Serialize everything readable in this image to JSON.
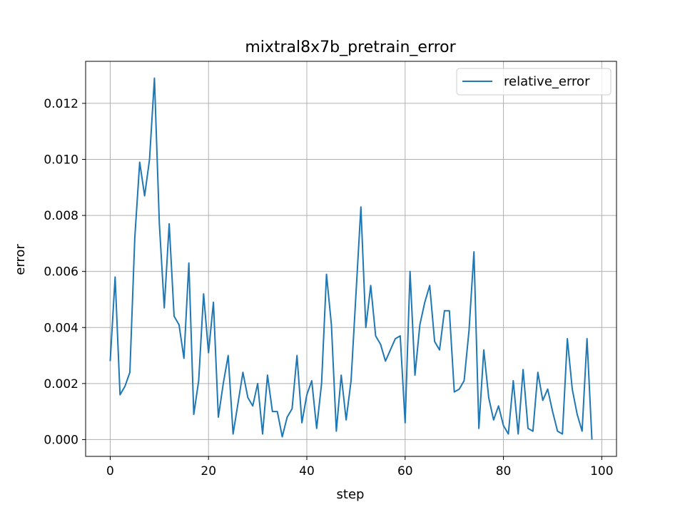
{
  "chart_data": {
    "type": "line",
    "title": "mixtral8x7b_pretrain_error",
    "xlabel": "step",
    "ylabel": "error",
    "xlim": [
      -5,
      103
    ],
    "ylim": [
      -0.0006,
      0.0135
    ],
    "xticks": [
      0,
      20,
      40,
      60,
      80,
      100
    ],
    "xtick_labels": [
      "0",
      "20",
      "40",
      "60",
      "80",
      "100"
    ],
    "yticks": [
      0.0,
      0.002,
      0.004,
      0.006,
      0.008,
      0.01,
      0.012
    ],
    "ytick_labels": [
      "0.000",
      "0.002",
      "0.004",
      "0.006",
      "0.008",
      "0.010",
      "0.012"
    ],
    "grid": true,
    "legend_position": "top-right",
    "series": [
      {
        "name": "relative_error",
        "color": "#1f77b4",
        "x": [
          0,
          1,
          2,
          3,
          4,
          5,
          6,
          7,
          8,
          9,
          10,
          11,
          12,
          13,
          14,
          15,
          16,
          17,
          18,
          19,
          20,
          21,
          22,
          23,
          24,
          25,
          26,
          27,
          28,
          29,
          30,
          31,
          32,
          33,
          34,
          35,
          36,
          37,
          38,
          39,
          40,
          41,
          42,
          43,
          44,
          45,
          46,
          47,
          48,
          49,
          50,
          51,
          52,
          53,
          54,
          55,
          56,
          57,
          58,
          59,
          60,
          61,
          62,
          63,
          64,
          65,
          66,
          67,
          68,
          69,
          70,
          71,
          72,
          73,
          74,
          75,
          76,
          77,
          78,
          79,
          80,
          81,
          82,
          83,
          84,
          85,
          86,
          87,
          88,
          89,
          90,
          91,
          92,
          93,
          94,
          95,
          96,
          97,
          98
        ],
        "y": [
          0.0028,
          0.0058,
          0.0016,
          0.0019,
          0.0024,
          0.0072,
          0.0099,
          0.0087,
          0.01,
          0.0129,
          0.0077,
          0.0047,
          0.0077,
          0.0044,
          0.0041,
          0.0029,
          0.0063,
          0.0009,
          0.0021,
          0.0052,
          0.0031,
          0.0049,
          0.0008,
          0.002,
          0.003,
          0.0002,
          0.0013,
          0.0024,
          0.0015,
          0.0012,
          0.002,
          0.0002,
          0.0023,
          0.001,
          0.001,
          0.0001,
          0.0008,
          0.0011,
          0.003,
          0.0006,
          0.0016,
          0.0021,
          0.0004,
          0.002,
          0.0059,
          0.0041,
          0.0003,
          0.0023,
          0.0007,
          0.0021,
          0.0052,
          0.0083,
          0.004,
          0.0055,
          0.0037,
          0.0034,
          0.0028,
          0.0032,
          0.0036,
          0.0037,
          0.0006,
          0.006,
          0.0023,
          0.0041,
          0.0049,
          0.0055,
          0.0035,
          0.0032,
          0.0046,
          0.0046,
          0.0017,
          0.0018,
          0.0021,
          0.0039,
          0.0067,
          0.0004,
          0.0032,
          0.0015,
          0.0007,
          0.0012,
          0.0005,
          0.0002,
          0.0021,
          0.0002,
          0.0025,
          0.0004,
          0.0003,
          0.0024,
          0.0014,
          0.0018,
          0.001,
          0.0003,
          0.0002,
          0.0036,
          0.0018,
          0.0009,
          0.0003,
          0.0036,
          0.0
        ]
      }
    ]
  }
}
